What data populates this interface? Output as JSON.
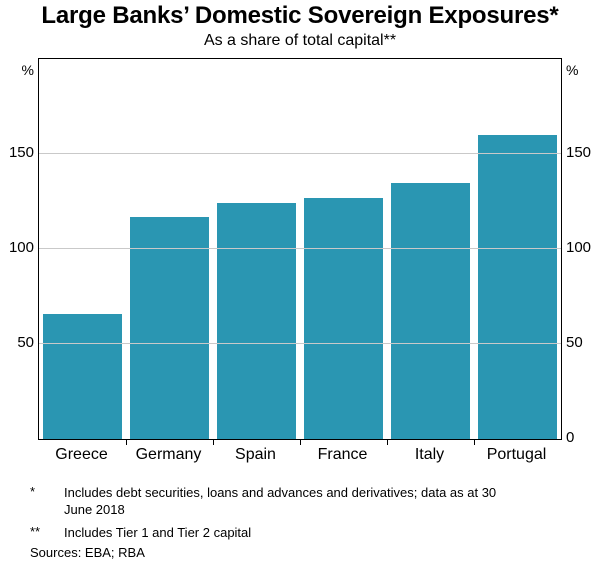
{
  "title": "Large Banks’ Domestic Sovereign Exposures*",
  "subtitle": "As a share of total capital**",
  "axes": {
    "left_unit": "%",
    "right_unit": "%",
    "left_ticks": [
      150,
      100,
      50
    ],
    "right_ticks": [
      150,
      100,
      50,
      0
    ]
  },
  "chart_data": {
    "type": "bar",
    "title": "Large Banks’ Domestic Sovereign Exposures*",
    "subtitle": "As a share of total capital**",
    "categories": [
      "Greece",
      "Germany",
      "Spain",
      "France",
      "Italy",
      "Portugal"
    ],
    "values": [
      66,
      117,
      124,
      127,
      135,
      160
    ],
    "xlabel": "",
    "ylabel": "%",
    "ylim": [
      0,
      200
    ],
    "yticks": [
      0,
      50,
      100,
      150
    ],
    "grid": true,
    "legend": "none",
    "bar_color": "#2a96b2"
  },
  "footnotes": [
    {
      "marker": "*",
      "text": "Includes debt securities, loans and advances and derivatives; data as at 30 June 2018"
    },
    {
      "marker": "**",
      "text": "Includes Tier 1 and Tier 2 capital"
    }
  ],
  "sources": "Sources: EBA; RBA"
}
